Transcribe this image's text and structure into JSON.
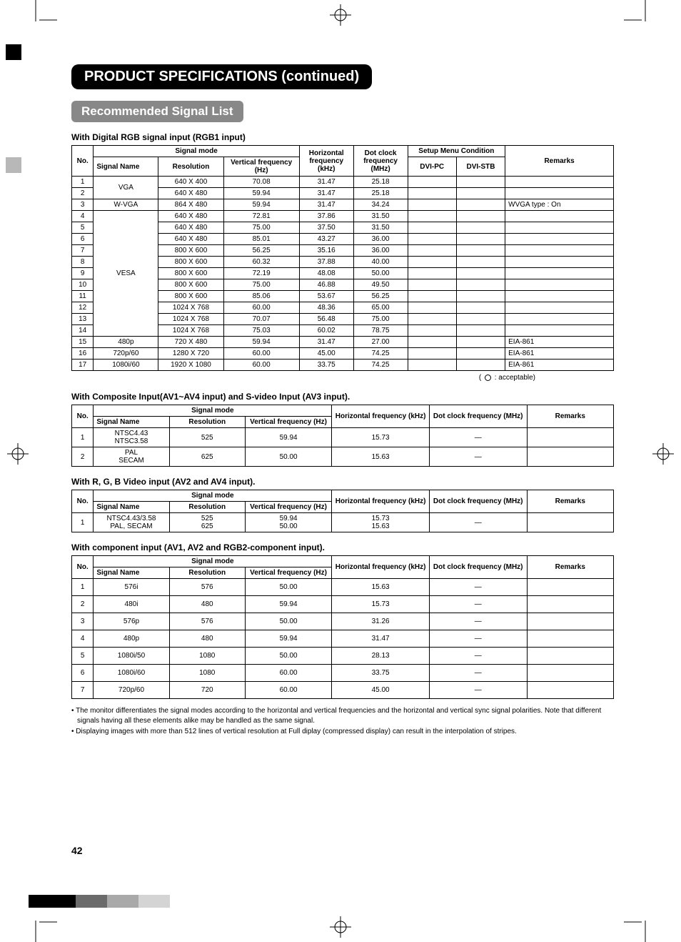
{
  "page_number": "42",
  "title": "PRODUCT SPECIFICATIONS (continued)",
  "subtitle": "Recommended Signal List",
  "legend_text_prefix": "(",
  "legend_text_suffix": " : acceptable)",
  "table1": {
    "caption": "With Digital RGB signal input (RGB1 input)",
    "header_signal_mode": "Signal mode",
    "header_horiz": "Horizontal frequency (kHz)",
    "header_dot": "Dot clock frequency (MHz)",
    "header_setup": "Setup Menu Condition",
    "header_remarks": "Remarks",
    "header_no": "No.",
    "header_signal_name": "Signal Name",
    "header_resolution": "Resolution",
    "header_vfreq": "Vertical frequency (Hz)",
    "header_dvipc": "DVI-PC",
    "header_dvistb": "DVI-STB",
    "groups": [
      {
        "name": "VGA",
        "rows": [
          {
            "no": "1",
            "res": "640 X 400",
            "vf": "70.08",
            "hf": "31.47",
            "dc": "25.18",
            "pc": "",
            "stb": "",
            "rem": ""
          },
          {
            "no": "2",
            "res": "640 X 480",
            "vf": "59.94",
            "hf": "31.47",
            "dc": "25.18",
            "pc": "",
            "stb": "",
            "rem": ""
          }
        ]
      },
      {
        "name": "W-VGA",
        "rows": [
          {
            "no": "3",
            "res": "864 X 480",
            "vf": "59.94",
            "hf": "31.47",
            "dc": "34.24",
            "pc": "",
            "stb": "",
            "rem": "WVGA type : On"
          }
        ]
      },
      {
        "name": "VESA",
        "rows": [
          {
            "no": "4",
            "res": "640 X 480",
            "vf": "72.81",
            "hf": "37.86",
            "dc": "31.50",
            "pc": "",
            "stb": "",
            "rem": ""
          },
          {
            "no": "5",
            "res": "640 X 480",
            "vf": "75.00",
            "hf": "37.50",
            "dc": "31.50",
            "pc": "",
            "stb": "",
            "rem": ""
          },
          {
            "no": "6",
            "res": "640 X 480",
            "vf": "85.01",
            "hf": "43.27",
            "dc": "36.00",
            "pc": "",
            "stb": "",
            "rem": ""
          },
          {
            "no": "7",
            "res": "800 X 600",
            "vf": "56.25",
            "hf": "35.16",
            "dc": "36.00",
            "pc": "",
            "stb": "",
            "rem": ""
          },
          {
            "no": "8",
            "res": "800 X 600",
            "vf": "60.32",
            "hf": "37.88",
            "dc": "40.00",
            "pc": "",
            "stb": "",
            "rem": ""
          },
          {
            "no": "9",
            "res": "800 X 600",
            "vf": "72.19",
            "hf": "48.08",
            "dc": "50.00",
            "pc": "",
            "stb": "",
            "rem": ""
          },
          {
            "no": "10",
            "res": "800 X 600",
            "vf": "75.00",
            "hf": "46.88",
            "dc": "49.50",
            "pc": "",
            "stb": "",
            "rem": ""
          },
          {
            "no": "11",
            "res": "800 X 600",
            "vf": "85.06",
            "hf": "53.67",
            "dc": "56.25",
            "pc": "",
            "stb": "",
            "rem": ""
          },
          {
            "no": "12",
            "res": "1024 X 768",
            "vf": "60.00",
            "hf": "48.36",
            "dc": "65.00",
            "pc": "",
            "stb": "",
            "rem": ""
          },
          {
            "no": "13",
            "res": "1024 X 768",
            "vf": "70.07",
            "hf": "56.48",
            "dc": "75.00",
            "pc": "",
            "stb": "",
            "rem": ""
          },
          {
            "no": "14",
            "res": "1024 X 768",
            "vf": "75.03",
            "hf": "60.02",
            "dc": "78.75",
            "pc": "",
            "stb": "",
            "rem": ""
          }
        ]
      },
      {
        "name": "480p",
        "rows": [
          {
            "no": "15",
            "res": "720 X 480",
            "vf": "59.94",
            "hf": "31.47",
            "dc": "27.00",
            "pc": "",
            "stb": "",
            "rem": "EIA-861"
          }
        ]
      },
      {
        "name": "720p/60",
        "rows": [
          {
            "no": "16",
            "res": "1280 X 720",
            "vf": "60.00",
            "hf": "45.00",
            "dc": "74.25",
            "pc": "",
            "stb": "",
            "rem": "EIA-861"
          }
        ]
      },
      {
        "name": "1080i/60",
        "rows": [
          {
            "no": "17",
            "res": "1920 X 1080",
            "vf": "60.00",
            "hf": "33.75",
            "dc": "74.25",
            "pc": "",
            "stb": "",
            "rem": "EIA-861"
          }
        ]
      }
    ]
  },
  "table2": {
    "caption": "With Composite Input(AV1~AV4 input) and S-video Input (AV3 input).",
    "header_signal_mode": "Signal mode",
    "header_horiz": "Horizontal frequency (kHz)",
    "header_dot": "Dot clock frequency (MHz)",
    "header_remarks": "Remarks",
    "header_no": "No.",
    "header_signal_name": "Signal Name",
    "header_resolution": "Resolution",
    "header_vfreq": "Vertical frequency (Hz)",
    "rows": [
      {
        "no": "1",
        "name": "NTSC4.43\nNTSC3.58",
        "res": "525",
        "vf": "59.94",
        "hf": "15.73",
        "dc": "—",
        "rem": ""
      },
      {
        "no": "2",
        "name": "PAL\nSECAM",
        "res": "625",
        "vf": "50.00",
        "hf": "15.63",
        "dc": "—",
        "rem": ""
      }
    ]
  },
  "table3": {
    "caption": "With R, G, B Video input (AV2 and AV4 input).",
    "header_signal_mode": "Signal mode",
    "header_horiz": "Horizontal frequency (kHz)",
    "header_dot": "Dot clock frequency (MHz)",
    "header_remarks": "Remarks",
    "header_no": "No.",
    "header_signal_name": "Signal Name",
    "header_resolution": "Resolution",
    "header_vfreq": "Vertical frequency (Hz)",
    "rows": [
      {
        "no": "1",
        "name": "NTSC4.43/3.58\nPAL, SECAM",
        "res": "525\n625",
        "vf": "59.94\n50.00",
        "hf": "15.73\n15.63",
        "dc": "—",
        "rem": ""
      }
    ]
  },
  "table4": {
    "caption": "With component input (AV1, AV2 and RGB2-component input).",
    "header_signal_mode": "Signal mode",
    "header_horiz": "Horizontal frequency (kHz)",
    "header_dot": "Dot clock frequency (MHz)",
    "header_remarks": "Remarks",
    "header_no": "No.",
    "header_signal_name": "Signal Name",
    "header_resolution": "Resolution",
    "header_vfreq": "Vertical frequency (Hz)",
    "rows": [
      {
        "no": "1",
        "name": "576i",
        "res": "576",
        "vf": "50.00",
        "hf": "15.63",
        "dc": "—",
        "rem": ""
      },
      {
        "no": "2",
        "name": "480i",
        "res": "480",
        "vf": "59.94",
        "hf": "15.73",
        "dc": "—",
        "rem": ""
      },
      {
        "no": "3",
        "name": "576p",
        "res": "576",
        "vf": "50.00",
        "hf": "31.26",
        "dc": "—",
        "rem": ""
      },
      {
        "no": "4",
        "name": "480p",
        "res": "480",
        "vf": "59.94",
        "hf": "31.47",
        "dc": "—",
        "rem": ""
      },
      {
        "no": "5",
        "name": "1080i/50",
        "res": "1080",
        "vf": "50.00",
        "hf": "28.13",
        "dc": "—",
        "rem": ""
      },
      {
        "no": "6",
        "name": "1080i/60",
        "res": "1080",
        "vf": "60.00",
        "hf": "33.75",
        "dc": "—",
        "rem": ""
      },
      {
        "no": "7",
        "name": "720p/60",
        "res": "720",
        "vf": "60.00",
        "hf": "45.00",
        "dc": "—",
        "rem": ""
      }
    ]
  },
  "notes": [
    "• The monitor differentiates the signal modes according to the horizontal and vertical frequencies and the horizontal and vertical sync signal polarities.  Note that different signals having all these elements alike may be handled as the same signal.",
    "• Displaying images with more than 512 lines of vertical resolution at Full diplay (compressed display) can result in the interpolation of stripes."
  ],
  "footer_colors": [
    "#000000",
    "#000000",
    "#000000",
    "#6b6b6b",
    "#6b6b6b",
    "#a9a9a9",
    "#a9a9a9",
    "#d4d4d4",
    "#d4d4d4"
  ],
  "colwidths": {
    "t1": {
      "no": "4%",
      "name": "12%",
      "res": "12%",
      "vf": "14%",
      "hf": "10%",
      "dc": "10%",
      "pc": "9%",
      "stb": "9%",
      "rem": "20%"
    },
    "std": {
      "no": "4%",
      "name": "14%",
      "res": "14%",
      "vf": "16%",
      "hf": "18%",
      "dc": "18%",
      "rem": "16%"
    }
  }
}
